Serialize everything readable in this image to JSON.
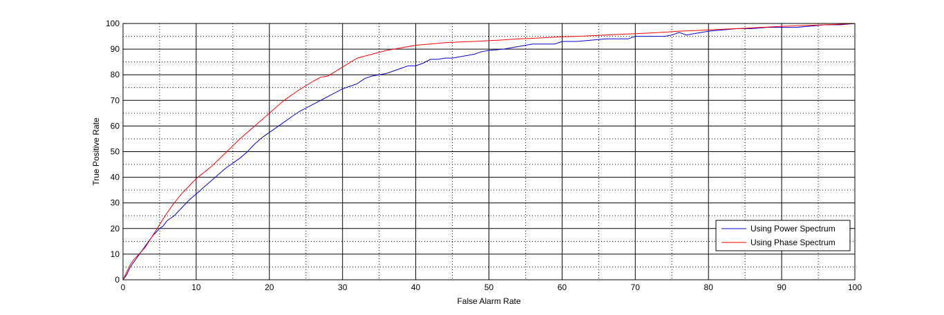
{
  "chart_data": {
    "type": "line",
    "title": "",
    "xlabel": "False Alarm Rate",
    "ylabel": "True Positive Rate",
    "xlim": [
      0,
      100
    ],
    "ylim": [
      0,
      100
    ],
    "xticks": [
      0,
      10,
      20,
      30,
      40,
      50,
      60,
      70,
      80,
      90,
      100
    ],
    "yticks": [
      0,
      10,
      20,
      30,
      40,
      50,
      60,
      70,
      80,
      90,
      100
    ],
    "grid": "major solid, minor dotted",
    "legend_position": "bottom-right",
    "series": [
      {
        "name": "Using Power Spectrum",
        "color": "#0000cc",
        "x": [
          0,
          0.5,
          1,
          1.5,
          2,
          2.5,
          3,
          3.5,
          4,
          4.5,
          5,
          5.5,
          6,
          6.5,
          7,
          8,
          9,
          10,
          11,
          12,
          13,
          14,
          15,
          16,
          17,
          18,
          19,
          20,
          21,
          22,
          23,
          24,
          25,
          26,
          27,
          28,
          29,
          30,
          31,
          32,
          33,
          34,
          35,
          36,
          37,
          38,
          39,
          40,
          41,
          42,
          43,
          44,
          45,
          46,
          47,
          48,
          49,
          50,
          52,
          54,
          56,
          58,
          59,
          60,
          62,
          64,
          66,
          68,
          69,
          70,
          71,
          72,
          74,
          75,
          76,
          77,
          78,
          79,
          80,
          82,
          84,
          86,
          88,
          90,
          92,
          94,
          96,
          98,
          100
        ],
        "y": [
          0,
          2,
          5,
          7,
          9,
          11,
          13,
          15,
          17,
          18.5,
          20,
          21,
          23,
          24,
          25,
          28,
          31,
          33.5,
          36,
          38.5,
          41,
          43.5,
          45.5,
          47.5,
          50,
          53,
          55.5,
          57.5,
          59.5,
          61.5,
          63.5,
          65.5,
          67,
          68.5,
          70,
          71.5,
          73,
          74.5,
          75.5,
          76.5,
          78.5,
          79.5,
          80,
          80.5,
          81.5,
          82.5,
          83.5,
          83.5,
          84.5,
          86,
          86,
          86.5,
          86.5,
          87,
          87.5,
          88,
          89,
          89.5,
          90,
          91,
          92,
          92,
          92,
          93,
          93,
          93.5,
          94,
          94,
          94,
          95,
          95,
          95,
          95,
          95.5,
          96.5,
          95.5,
          96,
          96.5,
          97,
          97.5,
          98,
          98,
          98.5,
          98.5,
          98.5,
          99,
          99.5,
          99.5,
          100
        ]
      },
      {
        "name": "Using Phase Spectrum",
        "color": "#ff0000",
        "x": [
          0,
          0.5,
          1,
          1.5,
          2,
          3,
          4,
          5,
          6,
          7,
          8,
          9,
          10,
          12,
          14,
          16,
          18,
          20,
          22,
          24,
          26,
          27,
          28,
          30,
          32,
          34,
          36,
          38,
          40,
          42,
          44,
          46,
          48,
          50,
          52,
          54,
          56,
          58,
          60,
          62,
          64,
          66,
          68,
          70,
          72,
          74,
          76,
          78,
          80,
          82,
          84,
          86,
          88,
          90,
          92,
          94,
          96,
          98,
          100
        ],
        "y": [
          0,
          3,
          6,
          8,
          9.5,
          12.5,
          17,
          21.5,
          26,
          30,
          33.5,
          36.5,
          39.5,
          44,
          49.5,
          55,
          60,
          65,
          70,
          74,
          77.5,
          79,
          79.5,
          83,
          86.5,
          88,
          89.5,
          90.5,
          91.5,
          92,
          92.5,
          92.8,
          93,
          93.3,
          93.6,
          94,
          94.2,
          94.5,
          94.8,
          95,
          95.2,
          95.5,
          95.8,
          96,
          96.3,
          96.6,
          97,
          97.2,
          97.5,
          97.8,
          98,
          98.3,
          98.6,
          98.9,
          99.1,
          99.3,
          99.5,
          99.7,
          100
        ]
      }
    ]
  }
}
